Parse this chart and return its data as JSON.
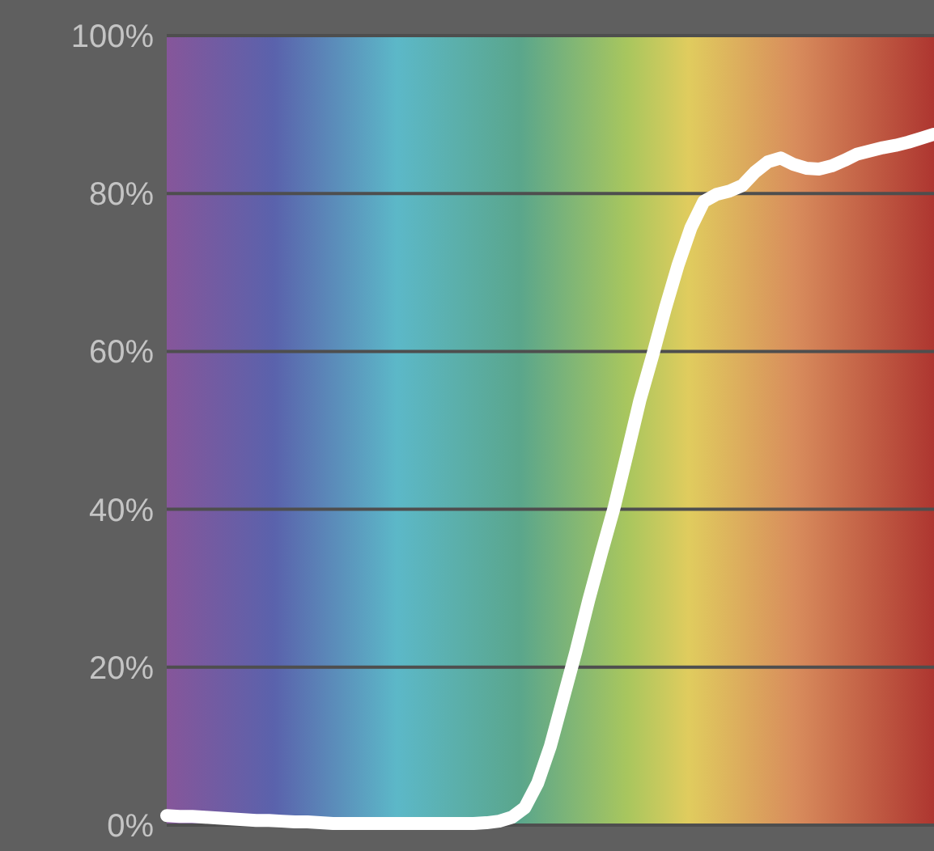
{
  "chart_data": {
    "type": "line",
    "categories": [
      null,
      null,
      null,
      null,
      null,
      null,
      null,
      null,
      null,
      null,
      null,
      null,
      null,
      null,
      null,
      null,
      null,
      null,
      null,
      null,
      null,
      null,
      null,
      null,
      null,
      null,
      null,
      null,
      null,
      null,
      null,
      null,
      null,
      null,
      null,
      null,
      null,
      null,
      null,
      null,
      null,
      null,
      null,
      null,
      null,
      null,
      null,
      null,
      null,
      null,
      null,
      null,
      null,
      null,
      null,
      null,
      null,
      null,
      null,
      null,
      null
    ],
    "series": [
      {
        "color": "#ffffff",
        "values": [
          1.2,
          1.1,
          1.1,
          1.0,
          0.9,
          0.8,
          0.7,
          0.6,
          0.6,
          0.5,
          0.4,
          0.4,
          0.3,
          0.2,
          0.2,
          0.2,
          0.2,
          0.2,
          0.2,
          0.2,
          0.2,
          0.2,
          0.2,
          0.2,
          0.2,
          0.3,
          0.5,
          1.0,
          2.2,
          5.3,
          10,
          16,
          22,
          28.5,
          34.5,
          40.3,
          47,
          53.8,
          59.5,
          65.5,
          71,
          75.7,
          79,
          79.9,
          80.3,
          81,
          82.7,
          84,
          84.5,
          83.7,
          83.2,
          83.1,
          83.5,
          84.2,
          85,
          85.4,
          85.8,
          86.1,
          86.5,
          87,
          87.5
        ]
      }
    ],
    "ylim": [
      0,
      100
    ],
    "yticks": [
      {
        "value": 0,
        "label": "0%"
      },
      {
        "value": 20,
        "label": "20%"
      },
      {
        "value": 40,
        "label": "40%"
      },
      {
        "value": 60,
        "label": "60%"
      },
      {
        "value": 80,
        "label": "80%"
      },
      {
        "value": 100,
        "label": "100%"
      }
    ],
    "grid": "y",
    "marker": "none",
    "line_style": "solid"
  }
}
